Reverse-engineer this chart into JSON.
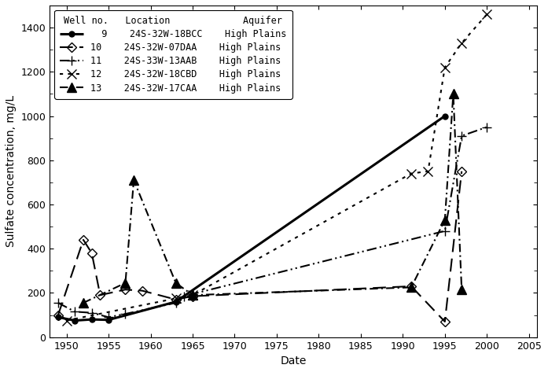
{
  "xlabel": "Date",
  "ylabel": "Sulfate concentration, mg/L",
  "ylim": [
    0,
    1500
  ],
  "xlim": [
    1948,
    2006
  ],
  "yticks": [
    0,
    200,
    400,
    600,
    800,
    1000,
    1200,
    1400
  ],
  "xticks": [
    1950,
    1955,
    1960,
    1965,
    1970,
    1975,
    1980,
    1985,
    1990,
    1995,
    2000,
    2005
  ],
  "wells": [
    {
      "number": 9,
      "location": "24S-32W-18BCC",
      "aquifer": "High Plains",
      "marker": "o",
      "markersize": 5,
      "linewidth": 2.2,
      "mfc": "black",
      "mec": "black",
      "ls_key": "solid",
      "data": [
        [
          1949,
          90
        ],
        [
          1951,
          75
        ],
        [
          1953,
          80
        ],
        [
          1955,
          78
        ],
        [
          1963,
          160
        ],
        [
          1995,
          1000
        ]
      ]
    },
    {
      "number": 10,
      "location": "24S-32W-07DAA",
      "aquifer": "High Plains",
      "marker": "D",
      "markersize": 6,
      "linewidth": 1.5,
      "mfc": "none",
      "mec": "black",
      "ls_key": "longdash",
      "data": [
        [
          1949,
          100
        ],
        [
          1952,
          440
        ],
        [
          1953,
          380
        ],
        [
          1954,
          190
        ],
        [
          1957,
          215
        ],
        [
          1959,
          210
        ],
        [
          1963,
          170
        ],
        [
          1965,
          185
        ],
        [
          1991,
          230
        ],
        [
          1995,
          70
        ],
        [
          1997,
          750
        ]
      ]
    },
    {
      "number": 11,
      "location": "24S-33W-13AAB",
      "aquifer": "High Plains",
      "marker": "+",
      "markersize": 9,
      "linewidth": 1.5,
      "mfc": "black",
      "mec": "black",
      "ls_key": "dashdotdot",
      "data": [
        [
          1949,
          155
        ],
        [
          1951,
          115
        ],
        [
          1953,
          110
        ],
        [
          1955,
          90
        ],
        [
          1957,
          105
        ],
        [
          1963,
          155
        ],
        [
          1964,
          185
        ],
        [
          1965,
          195
        ],
        [
          1995,
          480
        ],
        [
          1997,
          910
        ],
        [
          2000,
          950
        ]
      ]
    },
    {
      "number": 12,
      "location": "24S-32W-18CBD",
      "aquifer": "High Plains",
      "marker": "x",
      "markersize": 9,
      "linewidth": 1.5,
      "mfc": "black",
      "mec": "black",
      "ls_key": "dotted",
      "data": [
        [
          1950,
          75
        ],
        [
          1963,
          175
        ],
        [
          1965,
          190
        ],
        [
          1991,
          740
        ],
        [
          1993,
          750
        ],
        [
          1995,
          1220
        ],
        [
          1997,
          1330
        ],
        [
          2000,
          1460
        ]
      ]
    },
    {
      "number": 13,
      "location": "24S-32W-17CAA",
      "aquifer": "High Plains",
      "marker": "^",
      "markersize": 8,
      "linewidth": 1.5,
      "mfc": "black",
      "mec": "black",
      "ls_key": "dashdot",
      "data": [
        [
          1952,
          155
        ],
        [
          1957,
          245
        ],
        [
          1958,
          710
        ],
        [
          1963,
          245
        ],
        [
          1965,
          190
        ],
        [
          1991,
          225
        ],
        [
          1995,
          530
        ],
        [
          1996,
          1100
        ],
        [
          1997,
          215
        ]
      ]
    }
  ],
  "legend_texts": [
    "  9    24S-32W-18BCC    High Plains",
    "10    24S-32W-07DAA    High Plains",
    "11    24S-33W-13AAB    High Plains",
    "12    24S-32W-18CBD    High Plains",
    "13    24S-32W-17CAA    High Plains"
  ],
  "legend_title": "Well no.   Location             Aquifer",
  "background_color": "#ffffff",
  "figure_size": [
    6.97,
    4.73
  ],
  "dpi": 100
}
